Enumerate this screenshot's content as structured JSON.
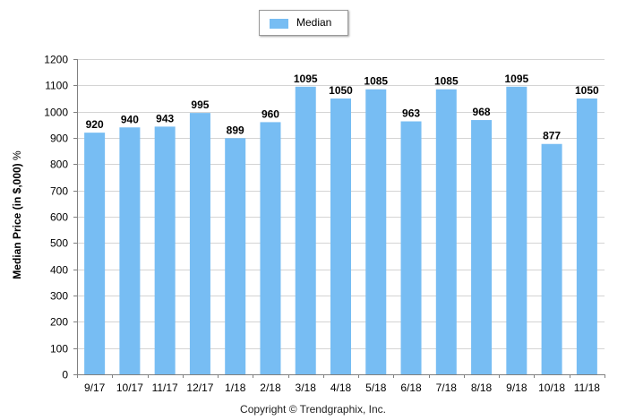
{
  "legend": {
    "label": "Median",
    "color": "#77bdf3"
  },
  "footer": {
    "copyright": "Copyright © Trendgraphix, Inc."
  },
  "chart_data": {
    "type": "bar",
    "categories": [
      "9/17",
      "10/17",
      "11/17",
      "12/17",
      "1/18",
      "2/18",
      "3/18",
      "4/18",
      "5/18",
      "6/18",
      "7/18",
      "8/18",
      "9/18",
      "10/18",
      "11/18"
    ],
    "series": [
      {
        "name": "Median",
        "color": "#77bdf3",
        "values": [
          920,
          940,
          943,
          995,
          899,
          960,
          1095,
          1050,
          1085,
          963,
          1085,
          968,
          1095,
          877,
          1050
        ]
      }
    ],
    "ylabel": "Median Price (in $,000)",
    "ylabel_unit": "%",
    "xlabel": "",
    "ylim": [
      0,
      1200
    ],
    "yticks": [
      0,
      100,
      200,
      300,
      400,
      500,
      600,
      700,
      800,
      900,
      1000,
      1100,
      1200
    ],
    "grid": true,
    "legend_position": "top-center",
    "data_labels": true
  }
}
